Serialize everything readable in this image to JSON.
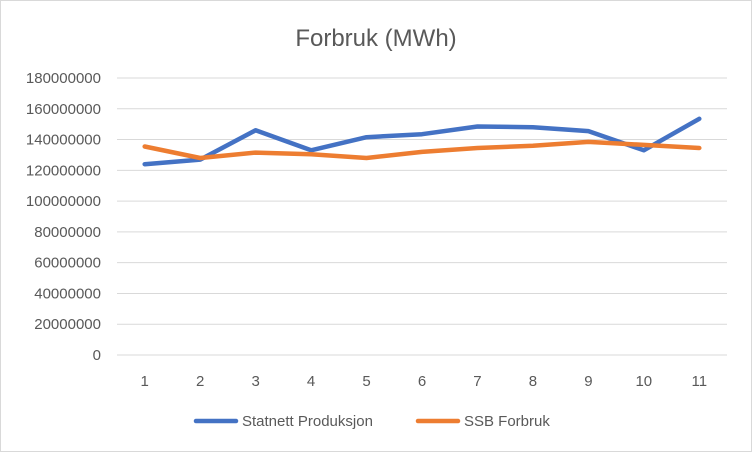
{
  "chart_data": {
    "type": "line",
    "title": "Forbruk (MWh)",
    "xlabel": "",
    "ylabel": "",
    "categories": [
      "1",
      "2",
      "3",
      "4",
      "5",
      "6",
      "7",
      "8",
      "9",
      "10",
      "11"
    ],
    "ylim": [
      0,
      180000000
    ],
    "yticks": [
      "0",
      "20000000",
      "40000000",
      "60000000",
      "80000000",
      "100000000",
      "120000000",
      "140000000",
      "160000000",
      "180000000"
    ],
    "grid": true,
    "legend_position": "bottom",
    "series": [
      {
        "name": "Statnett Produksjon",
        "color": "#4472C4",
        "values": [
          124000000,
          127000000,
          146000000,
          133000000,
          141500000,
          143500000,
          148500000,
          148000000,
          145500000,
          133000000,
          153500000
        ]
      },
      {
        "name": "SSB Forbruk",
        "color": "#ED7D31",
        "values": [
          135500000,
          128000000,
          131500000,
          130500000,
          128000000,
          132000000,
          134500000,
          136000000,
          138500000,
          136500000,
          134500000
        ]
      }
    ]
  }
}
